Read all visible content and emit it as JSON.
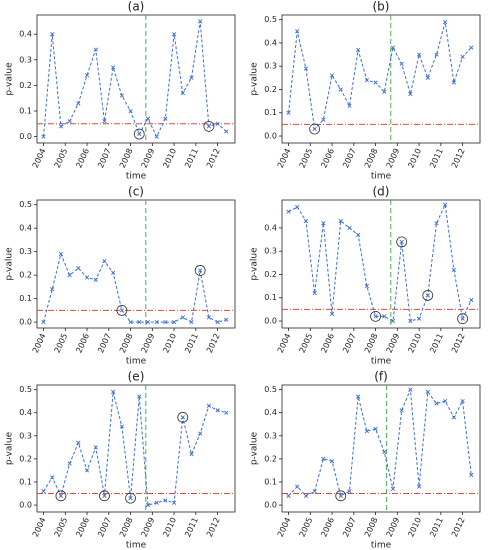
{
  "chart_data": [
    {
      "type": "line",
      "title": "(a)",
      "xlabel": "time",
      "ylabel": "p-value",
      "color": "#3b6fd1",
      "x": [
        2004,
        2004.4,
        2004.8,
        2005.2,
        2005.6,
        2006,
        2006.4,
        2006.8,
        2007.2,
        2007.6,
        2008,
        2008.4,
        2008.8,
        2009.2,
        2009.6,
        2010,
        2010.4,
        2010.8,
        2011.2,
        2011.6,
        2012,
        2012.4
      ],
      "values": [
        0.0,
        0.4,
        0.04,
        0.06,
        0.13,
        0.24,
        0.34,
        0.06,
        0.27,
        0.16,
        0.1,
        0.01,
        0.07,
        0.0,
        0.07,
        0.4,
        0.17,
        0.23,
        0.45,
        0.04,
        0.05,
        0.02
      ],
      "circled": [
        11,
        19
      ],
      "hline": 0.05,
      "hline_color": "#e0473d",
      "vline": 2008.7,
      "vline_color": "#4caf50",
      "xlim": [
        2003.7,
        2012.8
      ],
      "xticks": [
        2004,
        2005,
        2006,
        2007,
        2008,
        2009,
        2010,
        2011,
        2012
      ],
      "ylim": [
        -0.025,
        0.475
      ],
      "yticks": [
        {
          "value": 0,
          "label": "0.0"
        },
        0.1,
        0.2,
        0.3,
        0.4
      ]
    },
    {
      "type": "line",
      "title": "(b)",
      "xlabel": "time",
      "ylabel": "p-value",
      "color": "#3b6fd1",
      "x": [
        2004,
        2004.4,
        2004.8,
        2005.2,
        2005.6,
        2006,
        2006.4,
        2006.8,
        2007.2,
        2007.6,
        2008,
        2008.4,
        2008.8,
        2009.2,
        2009.6,
        2010,
        2010.4,
        2010.8,
        2011.2,
        2011.6,
        2012,
        2012.4
      ],
      "values": [
        0.1,
        0.45,
        0.29,
        0.03,
        0.07,
        0.26,
        0.2,
        0.13,
        0.37,
        0.24,
        0.23,
        0.19,
        0.38,
        0.31,
        0.18,
        0.35,
        0.25,
        0.35,
        0.49,
        0.23,
        0.34,
        0.38
      ],
      "circled": [
        3
      ],
      "hline": 0.05,
      "hline_color": "#e0473d",
      "vline": 2008.7,
      "vline_color": "#4caf50",
      "xlim": [
        2003.7,
        2012.8
      ],
      "xticks": [
        2004,
        2005,
        2006,
        2007,
        2008,
        2009,
        2010,
        2011,
        2012
      ],
      "ylim": [
        -0.03,
        0.52
      ],
      "yticks": [
        {
          "value": 0,
          "label": "0.0"
        },
        0.1,
        0.2,
        0.3,
        0.4,
        0.5
      ]
    },
    {
      "type": "line",
      "title": "(c)",
      "xlabel": "time",
      "ylabel": "p-value",
      "color": "#3b6fd1",
      "x": [
        2004,
        2004.4,
        2004.8,
        2005.2,
        2005.6,
        2006,
        2006.4,
        2006.8,
        2007.2,
        2007.6,
        2008,
        2008.4,
        2008.8,
        2009.2,
        2009.6,
        2010,
        2010.4,
        2010.8,
        2011.2,
        2011.6,
        2012,
        2012.4
      ],
      "values": [
        0.0,
        0.14,
        0.29,
        0.2,
        0.23,
        0.19,
        0.18,
        0.26,
        0.21,
        0.05,
        0.0,
        0.0,
        0.0,
        0.0,
        0.0,
        0.0,
        0.02,
        0.0,
        0.22,
        0.02,
        0.0,
        0.01
      ],
      "circled": [
        9,
        18
      ],
      "hline": 0.05,
      "hline_color": "#e0473d",
      "vline": 2008.7,
      "vline_color": "#4caf50",
      "xlim": [
        2003.7,
        2012.8
      ],
      "xticks": [
        2004,
        2005,
        2006,
        2007,
        2008,
        2009,
        2010,
        2011,
        2012
      ],
      "ylim": [
        -0.025,
        0.52
      ],
      "yticks": [
        {
          "value": 0,
          "label": "0.0"
        },
        0.1,
        0.2,
        0.3,
        0.4,
        0.5
      ]
    },
    {
      "type": "line",
      "title": "(d)",
      "xlabel": "time",
      "ylabel": "p-value",
      "color": "#3b6fd1",
      "x": [
        2004,
        2004.4,
        2004.8,
        2005.2,
        2005.6,
        2006,
        2006.4,
        2006.8,
        2007.2,
        2007.6,
        2008,
        2008.4,
        2008.8,
        2009.2,
        2009.6,
        2010,
        2010.4,
        2010.8,
        2011.2,
        2011.6,
        2012,
        2012.4
      ],
      "values": [
        0.47,
        0.49,
        0.43,
        0.12,
        0.42,
        0.03,
        0.43,
        0.4,
        0.37,
        0.15,
        0.02,
        0.02,
        0.0,
        0.34,
        0.0,
        0.01,
        0.11,
        0.42,
        0.5,
        0.22,
        0.01,
        0.09
      ],
      "circled": [
        10,
        13,
        16,
        20
      ],
      "hline": 0.05,
      "hline_color": "#e0473d",
      "vline": 2008.7,
      "vline_color": "#4caf50",
      "xlim": [
        2003.7,
        2012.8
      ],
      "xticks": [
        2004,
        2005,
        2006,
        2007,
        2008,
        2009,
        2010,
        2011,
        2012
      ],
      "ylim": [
        -0.03,
        0.52
      ],
      "yticks": [
        {
          "value": 0,
          "label": "0.0"
        },
        0.1,
        0.2,
        0.3,
        0.4
      ]
    },
    {
      "type": "line",
      "title": "(e)",
      "xlabel": "time",
      "ylabel": "p-value",
      "color": "#3b6fd1",
      "x": [
        2004,
        2004.4,
        2004.8,
        2005.2,
        2005.6,
        2006,
        2006.4,
        2006.8,
        2007.2,
        2007.6,
        2008,
        2008.4,
        2008.8,
        2009.2,
        2009.6,
        2010,
        2010.4,
        2010.8,
        2011.2,
        2011.6,
        2012,
        2012.4
      ],
      "values": [
        0.06,
        0.12,
        0.04,
        0.18,
        0.27,
        0.15,
        0.25,
        0.04,
        0.49,
        0.34,
        0.03,
        0.47,
        0.0,
        0.01,
        0.02,
        0.01,
        0.38,
        0.22,
        0.31,
        0.43,
        0.41,
        0.4
      ],
      "circled": [
        2,
        7,
        10,
        16
      ],
      "hline": 0.05,
      "hline_color": "#e0473d",
      "vline": 2008.7,
      "vline_color": "#4caf50",
      "xlim": [
        2003.7,
        2012.8
      ],
      "xticks": [
        2004,
        2005,
        2006,
        2007,
        2008,
        2009,
        2010,
        2011,
        2012
      ],
      "ylim": [
        -0.03,
        0.52
      ],
      "yticks": [
        {
          "value": 0,
          "label": "0.0"
        },
        0.1,
        0.2,
        0.3,
        0.4,
        0.5
      ]
    },
    {
      "type": "line",
      "title": "(f)",
      "xlabel": "time",
      "ylabel": "p-value",
      "color": "#3b6fd1",
      "x": [
        2004,
        2004.4,
        2004.8,
        2005.2,
        2005.6,
        2006,
        2006.4,
        2006.8,
        2007.2,
        2007.6,
        2008,
        2008.4,
        2008.8,
        2009.2,
        2009.6,
        2010,
        2010.4,
        2010.8,
        2011.2,
        2011.6,
        2012,
        2012.4
      ],
      "values": [
        0.04,
        0.08,
        0.04,
        0.06,
        0.2,
        0.19,
        0.04,
        0.06,
        0.47,
        0.32,
        0.33,
        0.23,
        0.07,
        0.41,
        0.5,
        0.08,
        0.49,
        0.44,
        0.45,
        0.38,
        0.45,
        0.13
      ],
      "circled": [
        6
      ],
      "hline": 0.05,
      "hline_color": "#e0473d",
      "vline": 2008.5,
      "vline_color": "#4caf50",
      "xlim": [
        2003.7,
        2012.8
      ],
      "xticks": [
        2004,
        2005,
        2006,
        2007,
        2008,
        2009,
        2010,
        2011,
        2012
      ],
      "ylim": [
        -0.03,
        0.52
      ],
      "yticks": [
        {
          "value": 0,
          "label": "0.0"
        },
        0.1,
        0.2,
        0.3,
        0.4,
        0.5
      ]
    }
  ]
}
